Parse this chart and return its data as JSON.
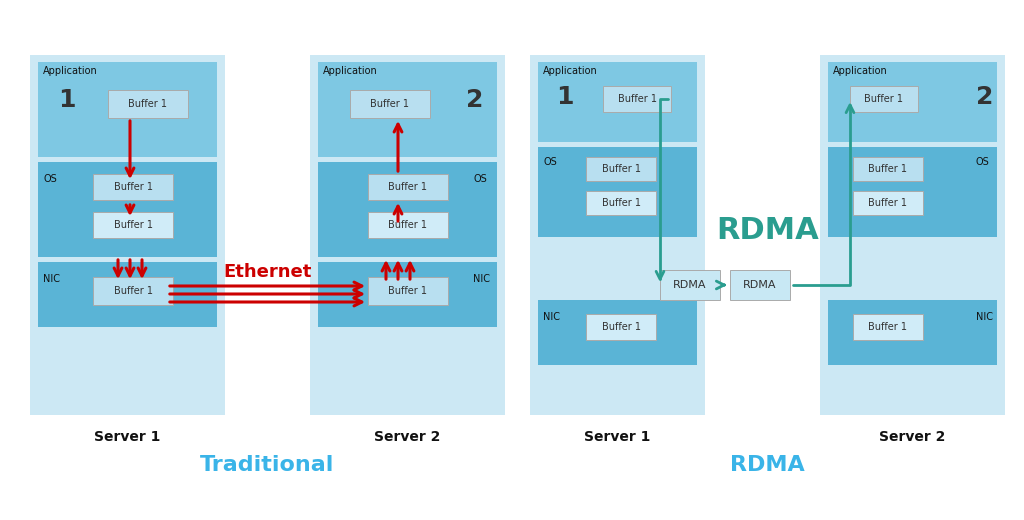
{
  "bg_color": "#ffffff",
  "outer_server_color": "#cce8f4",
  "app_section_color": "#7ec8e3",
  "os_section_color": "#5ab4d6",
  "nic_section_color": "#5ab4d6",
  "buffer_box_color": "#b8dff0",
  "buffer_box_color2": "#d0ecf8",
  "rdma_box_color": "#c8e8f4",
  "trad_arrow_color": "#cc0000",
  "rdma_arrow_color": "#2a9d8f",
  "traditional_label": "Traditional",
  "rdma_label": "RDMA",
  "ethernet_label": "Ethernet",
  "server1_label": "Server 1",
  "server2_label": "Server 2",
  "application_label": "Application",
  "os_label": "OS",
  "nic_label": "NIC",
  "buffer_label": "Buffer 1",
  "rdma_mid_label": "RDMA",
  "num1_label": "1",
  "num2_label": "2"
}
